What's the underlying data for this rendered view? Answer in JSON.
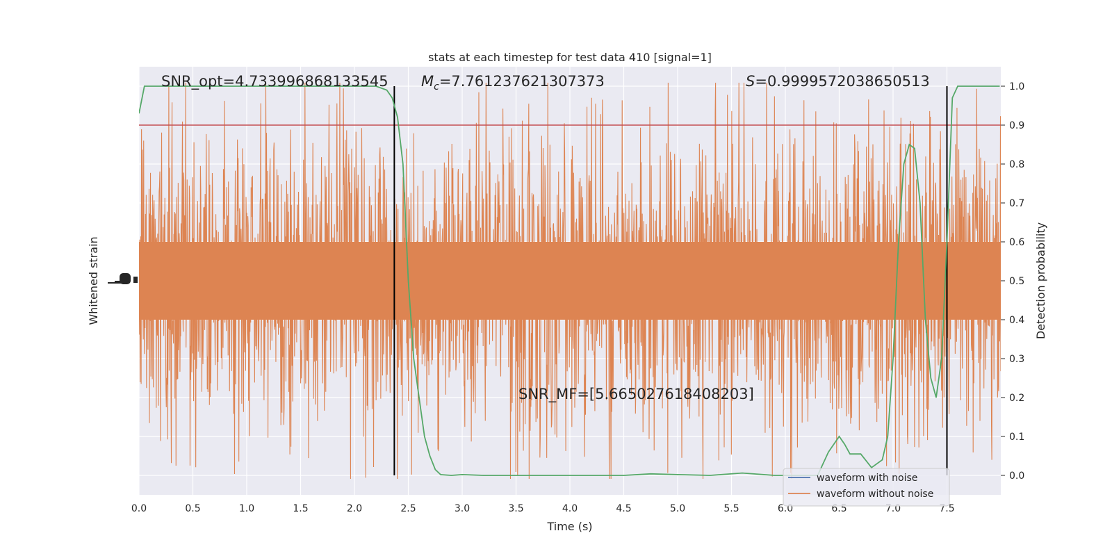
{
  "chart_data": {
    "type": "line",
    "title": "stats at each timestep for test data 410 [signal=1]",
    "xlabel": "Time (s)",
    "ylabel_left": "Whitened strain",
    "ylabel_right": "Detection probability",
    "xlim": [
      0,
      8
    ],
    "ylim_right": [
      -0.05,
      1.05
    ],
    "x_ticks": [
      "0.0",
      "0.5",
      "1.0",
      "1.5",
      "2.0",
      "2.5",
      "3.0",
      "3.5",
      "4.0",
      "4.5",
      "5.0",
      "5.5",
      "6.0",
      "6.5",
      "7.0",
      "7.5"
    ],
    "y_right_ticks": [
      "0.0",
      "0.1",
      "0.2",
      "0.3",
      "0.4",
      "0.5",
      "0.6",
      "0.7",
      "0.8",
      "0.9",
      "1.0"
    ],
    "grid": true,
    "legend_position": "bottom-right",
    "annotations": {
      "snr_opt": "SNR_opt=4.733996868133545",
      "mc_symbol": "M",
      "mc_subscript": "c",
      "mc_value": "=7.761237621307373",
      "s_symbol": "S",
      "s_value": "=0.9999572038650513",
      "snr_mf": "SNR_MF=[5.665027618408203]"
    },
    "threshold": {
      "value": 0.9,
      "color": "#c44e52"
    },
    "vertical_markers": [
      2.37,
      7.5
    ],
    "series": [
      {
        "name": "waveform with noise",
        "color": "#4c72b0"
      },
      {
        "name": "waveform without noise",
        "color": "#dd8452"
      },
      {
        "color": "#55a868",
        "x": [
          0.0,
          0.05,
          0.1,
          0.2,
          0.4,
          0.6,
          0.8,
          1.0,
          1.2,
          1.4,
          1.6,
          1.8,
          2.0,
          2.2,
          2.3,
          2.35,
          2.4,
          2.45,
          2.5,
          2.55,
          2.6,
          2.65,
          2.7,
          2.75,
          2.8,
          2.9,
          3.0,
          3.2,
          3.5,
          4.0,
          4.5,
          4.75,
          5.0,
          5.3,
          5.6,
          5.9,
          6.1,
          6.3,
          6.4,
          6.5,
          6.55,
          6.6,
          6.7,
          6.8,
          6.9,
          6.95,
          7.0,
          7.05,
          7.1,
          7.15,
          7.2,
          7.25,
          7.3,
          7.35,
          7.4,
          7.45,
          7.5,
          7.55,
          7.6,
          7.65,
          7.99
        ],
        "values": [
          0.93,
          1.0,
          1.0,
          1.0,
          1.0,
          1.0,
          1.0,
          1.0,
          1.0,
          1.0,
          1.0,
          1.0,
          1.0,
          1.0,
          0.99,
          0.97,
          0.92,
          0.8,
          0.5,
          0.3,
          0.2,
          0.1,
          0.05,
          0.015,
          0.002,
          0.0,
          0.002,
          0.0,
          0.0,
          0.0,
          0.0,
          0.004,
          0.002,
          0.0,
          0.006,
          0.0,
          0.0,
          0.0,
          0.06,
          0.1,
          0.08,
          0.055,
          0.055,
          0.02,
          0.04,
          0.1,
          0.3,
          0.6,
          0.8,
          0.85,
          0.84,
          0.7,
          0.4,
          0.25,
          0.2,
          0.3,
          0.6,
          0.97,
          1.0,
          1.0,
          1.0
        ]
      }
    ]
  }
}
